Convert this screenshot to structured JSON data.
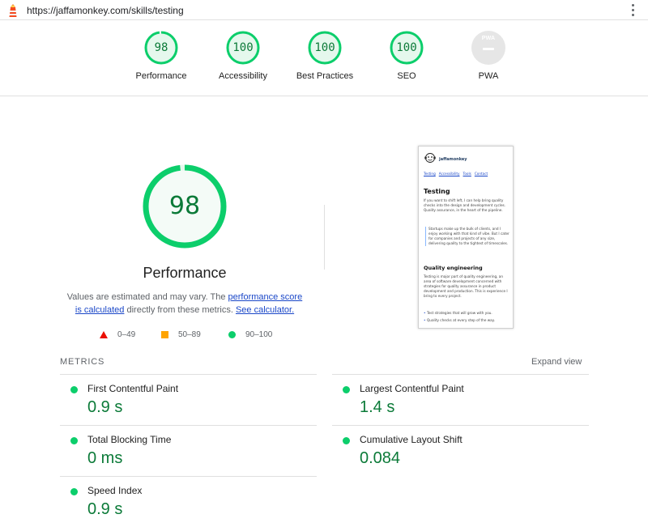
{
  "url": "https://jaffamonkey.com/skills/testing",
  "gauges": [
    {
      "score": "98",
      "label": "Performance"
    },
    {
      "score": "100",
      "label": "Accessibility"
    },
    {
      "score": "100",
      "label": "Best Practices"
    },
    {
      "score": "100",
      "label": "SEO"
    },
    {
      "score": "",
      "label": "PWA",
      "badge": "PWA"
    }
  ],
  "performance": {
    "score": "98",
    "score_fraction": 0.98,
    "title": "Performance",
    "desc_pre": "Values are estimated and may vary. The ",
    "desc_link1": "performance score is calculated",
    "desc_mid": " directly from these metrics. ",
    "desc_link2": "See calculator."
  },
  "legend": {
    "fail": "0–49",
    "average": "50–89",
    "pass": "90–100"
  },
  "thumbnail": {
    "brand": "jaffamonkey",
    "nav": [
      "Testing",
      "Accessibility",
      "Tools",
      "Contact"
    ],
    "heading": "Testing",
    "intro": "If you want to shift left, I can help bring quality checks into the design and development cycles. Quality assurance, in the heart of the pipeline.",
    "quote": "Startups make up the bulk of clients, and I enjoy working with that kind of vibe. But I cater for companies and projects of any size, delivering quality to the tightest of timescales.",
    "subheading": "Quality engineering",
    "body": "Testing is major part of quality engineering, an area of software development concerned with strategies for quality assurance in product development and production. This is experience I bring to every project.",
    "bullets": [
      "Test strategies that will grow with you.",
      "Quality checks at every step of the way."
    ]
  },
  "metrics": {
    "label": "METRICS",
    "expand": "Expand view",
    "items": [
      {
        "name": "First Contentful Paint",
        "value": "0.9 s"
      },
      {
        "name": "Largest Contentful Paint",
        "value": "1.4 s"
      },
      {
        "name": "Total Blocking Time",
        "value": "0 ms"
      },
      {
        "name": "Cumulative Layout Shift",
        "value": "0.084"
      },
      {
        "name": "Speed Index",
        "value": "0.9 s"
      }
    ]
  },
  "colors": {
    "pass": "#0cce6b",
    "pass_text": "#0b7a38",
    "average": "#ffa400",
    "fail": "#eb0f00",
    "link": "#1a47c8"
  }
}
